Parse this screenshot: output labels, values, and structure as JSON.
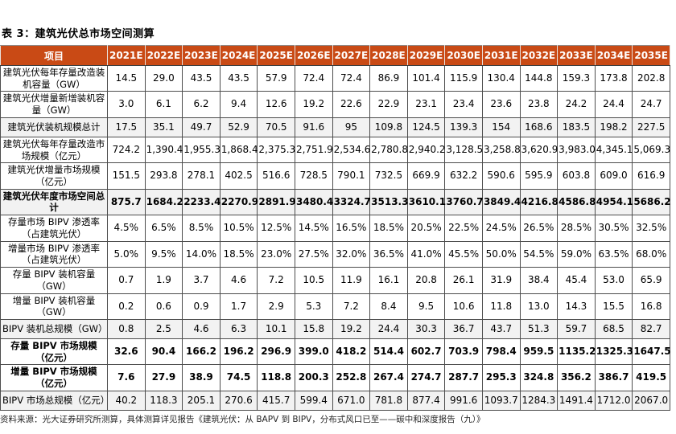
{
  "title": "表 3：建筑光伏总市场空间测算",
  "source_note": "资料来源：光大证券研究所测算，具体测算详见报告《建筑光伏：从 BAPV 到 BIPV，分布式风口已至——碳中和深度报告（九）》",
  "colors": {
    "header_bg": "#C94A15",
    "header_text": "#FFFFFF",
    "shaded_row_bg": "#F2F2F2",
    "body_border": "#4D4D4D"
  },
  "table": {
    "columns": [
      "项目",
      "2021E",
      "2022E",
      "2023E",
      "2024E",
      "2025E",
      "2026E",
      "2027E",
      "2028E",
      "2029E",
      "2030E",
      "2031E",
      "2032E",
      "2033E",
      "2034E",
      "2035E"
    ],
    "rows": [
      {
        "label": "建筑光伏每年存量改造装机容量（GW）",
        "bold": false,
        "shaded": false,
        "values": [
          "14.5",
          "29.0",
          "43.5",
          "43.5",
          "57.9",
          "72.4",
          "72.4",
          "86.9",
          "101.4",
          "115.9",
          "130.4",
          "144.8",
          "159.3",
          "173.8",
          "202.8"
        ]
      },
      {
        "label": "建筑光伏增量新增装机容量（GW）",
        "bold": false,
        "shaded": false,
        "values": [
          "3.0",
          "6.1",
          "6.2",
          "9.4",
          "12.6",
          "19.2",
          "22.6",
          "22.9",
          "23.1",
          "23.4",
          "23.6",
          "23.8",
          "24.2",
          "24.4",
          "24.7"
        ]
      },
      {
        "label": "建筑光伏装机规模总计",
        "bold": false,
        "shaded": true,
        "values": [
          "17.5",
          "35.1",
          "49.7",
          "52.9",
          "70.5",
          "91.6",
          "95",
          "109.8",
          "124.5",
          "139.3",
          "154",
          "168.6",
          "183.5",
          "198.2",
          "227.5"
        ]
      },
      {
        "label": "建筑光伏每年存量改造市场规模（亿元）",
        "bold": false,
        "shaded": false,
        "values": [
          "724.2",
          "1,390.4",
          "1,955.3",
          "1,868.4",
          "2,375.3",
          "2,751.9",
          "2,534.6",
          "2,780.8",
          "2,940.2",
          "3,128.5",
          "3,258.8",
          "3,620.9",
          "3,983.0",
          "4,345.1",
          "5,069.3"
        ]
      },
      {
        "label": "建筑光伏增量市场规模（亿元）",
        "bold": false,
        "shaded": false,
        "values": [
          "151.5",
          "293.8",
          "278.1",
          "402.5",
          "516.6",
          "728.5",
          "790.1",
          "732.5",
          "669.9",
          "632.2",
          "590.6",
          "595.9",
          "603.8",
          "609.0",
          "616.9"
        ]
      },
      {
        "label": "建筑光伏年度市场空间总计",
        "bold": true,
        "shaded": true,
        "values": [
          "875.7",
          "1684.2",
          "2233.4",
          "2270.9",
          "2891.9",
          "3480.4",
          "3324.7",
          "3513.3",
          "3610.1",
          "3760.7",
          "3849.4",
          "4216.8",
          "4586.8",
          "4954.1",
          "5686.2"
        ]
      },
      {
        "label": "存量市场 BIPV 渗透率（占建筑光伏）",
        "bold": false,
        "shaded": false,
        "values": [
          "4.5%",
          "6.5%",
          "8.5%",
          "10.5%",
          "12.5%",
          "14.5%",
          "16.5%",
          "18.5%",
          "20.5%",
          "22.5%",
          "24.5%",
          "26.5%",
          "28.5%",
          "30.5%",
          "32.5%"
        ]
      },
      {
        "label": "增量市场 BIPV 渗透率（占建筑光伏）",
        "bold": false,
        "shaded": false,
        "values": [
          "5.0%",
          "9.5%",
          "14.0%",
          "18.5%",
          "23.0%",
          "27.5%",
          "32.0%",
          "36.5%",
          "41.0%",
          "45.5%",
          "50.0%",
          "54.5%",
          "59.0%",
          "63.5%",
          "68.0%"
        ]
      },
      {
        "label": "存量 BIPV 装机容量（GW）",
        "bold": false,
        "shaded": false,
        "values": [
          "0.7",
          "1.9",
          "3.7",
          "4.6",
          "7.2",
          "10.5",
          "11.9",
          "16.1",
          "20.8",
          "26.1",
          "31.9",
          "38.4",
          "45.4",
          "53.0",
          "65.9"
        ]
      },
      {
        "label": "增量 BIPV 装机容量（GW）",
        "bold": false,
        "shaded": false,
        "values": [
          "0.2",
          "0.6",
          "0.9",
          "1.7",
          "2.9",
          "5.3",
          "7.2",
          "8.4",
          "9.5",
          "10.6",
          "11.8",
          "13.0",
          "14.3",
          "15.5",
          "16.8"
        ]
      },
      {
        "label": "BIPV 装机总规模（GW）",
        "bold": false,
        "shaded": true,
        "values": [
          "0.8",
          "2.5",
          "4.6",
          "6.3",
          "10.1",
          "15.8",
          "19.2",
          "24.4",
          "30.3",
          "36.7",
          "43.7",
          "51.3",
          "59.7",
          "68.5",
          "82.7"
        ]
      },
      {
        "label": "存量 BIPV 市场规模（亿元）",
        "bold": true,
        "shaded": false,
        "values": [
          "32.6",
          "90.4",
          "166.2",
          "196.2",
          "296.9",
          "399.0",
          "418.2",
          "514.4",
          "602.7",
          "703.9",
          "798.4",
          "959.5",
          "1135.2",
          "1325.3",
          "1647.5"
        ]
      },
      {
        "label": "增量 BIPV 市场规模（亿元）",
        "bold": true,
        "shaded": false,
        "values": [
          "7.6",
          "27.9",
          "38.9",
          "74.5",
          "118.8",
          "200.3",
          "252.8",
          "267.4",
          "274.7",
          "287.7",
          "295.3",
          "324.8",
          "356.2",
          "386.7",
          "419.5"
        ]
      },
      {
        "label": "BIPV 市场总规模（亿元）",
        "bold": false,
        "shaded": true,
        "values": [
          "40.2",
          "118.3",
          "205.1",
          "270.6",
          "415.7",
          "599.4",
          "671.0",
          "781.8",
          "877.4",
          "991.6",
          "1093.7",
          "1284.3",
          "1491.4",
          "1712.0",
          "2067.0"
        ]
      }
    ]
  }
}
